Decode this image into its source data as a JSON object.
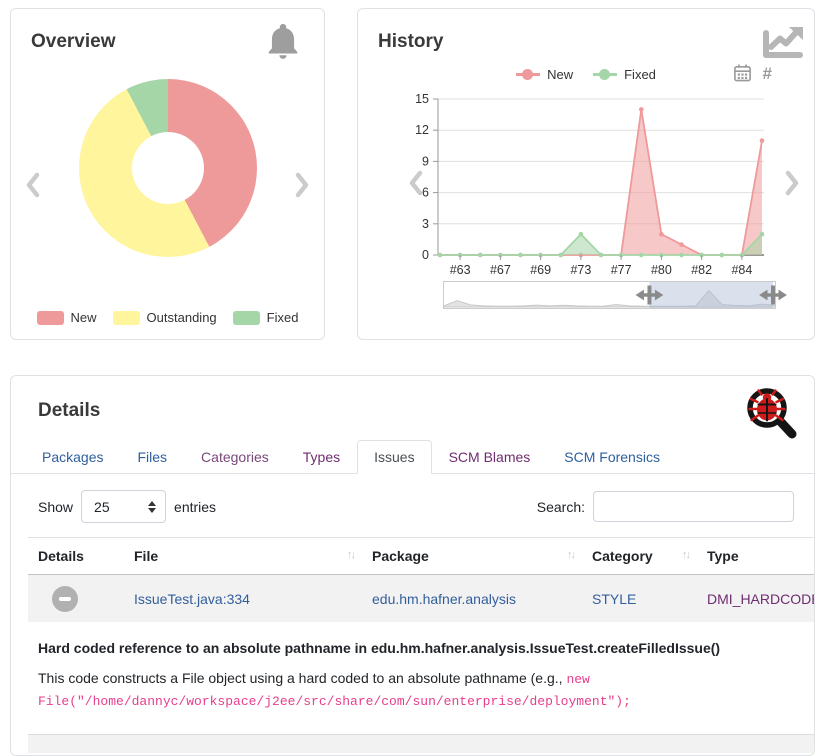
{
  "overview_card": {
    "title": "Overview"
  },
  "history_card": {
    "title": "History"
  },
  "details_card": {
    "title": "Details",
    "tabs": [
      {
        "label": "Packages"
      },
      {
        "label": "Files"
      },
      {
        "label": "Categories"
      },
      {
        "label": "Types"
      },
      {
        "label": "Issues",
        "active": true
      },
      {
        "label": "SCM Blames"
      },
      {
        "label": "SCM Forensics"
      }
    ],
    "controls": {
      "show_label": "Show",
      "entries_value": "25",
      "entries_label": "entries",
      "search_label": "Search:",
      "search_value": ""
    },
    "table": {
      "columns": [
        "Details",
        "File",
        "Package",
        "Category",
        "Type"
      ],
      "sort_glyph": "↑↓",
      "rows": [
        {
          "file": "IssueTest.java:334",
          "package": "edu.hm.hafner.analysis",
          "category": "STYLE",
          "type": "DMI_HARDCODED_ABSOLU"
        }
      ],
      "expanded": {
        "title": "Hard coded reference to an absolute pathname in edu.hm.hafner.analysis.IssueTest.createFilledIssue()",
        "text": "This code constructs a File object using a hard coded to an absolute pathname (e.g., ",
        "code": "new File(\"/home/dannyc/workspace/j2ee/src/share/com/sun/enterprise/deployment\");"
      }
    }
  },
  "chart_data": [
    {
      "type": "pie",
      "variant": "donut",
      "title": "Overview",
      "categories": [
        "New",
        "Outstanding",
        "Fixed"
      ],
      "values": [
        11,
        13,
        2
      ],
      "colors": [
        "#EF9A9A",
        "#FFF59D",
        "#A5D6A7"
      ],
      "legend_position": "bottom"
    },
    {
      "type": "area",
      "title": "History",
      "x_tick_labels": [
        "#63",
        "#67",
        "#69",
        "#73",
        "#77",
        "#80",
        "#82",
        "#84"
      ],
      "x_tick_indices": [
        1,
        3,
        5,
        7,
        9,
        11,
        13,
        15
      ],
      "n_points": 17,
      "ylim": [
        0,
        15
      ],
      "yticks": [
        0,
        3,
        6,
        9,
        12,
        15
      ],
      "grid": true,
      "legend_position": "top",
      "series": [
        {
          "name": "New",
          "color": "#EF9A9A",
          "values": [
            0,
            0,
            0,
            0,
            0,
            0,
            0,
            0,
            0,
            0,
            14,
            2,
            1,
            0,
            0,
            0,
            11
          ]
        },
        {
          "name": "Fixed",
          "color": "#A5D6A7",
          "values": [
            0,
            0,
            0,
            0,
            0,
            0,
            0,
            2,
            0,
            0,
            0,
            0,
            0,
            0,
            0,
            0,
            2
          ]
        }
      ],
      "zoom_slider": {
        "selection_start": 0.62,
        "selection_end": 1.0,
        "profile": [
          0.05,
          0.3,
          0.1,
          0.05,
          0.04,
          0.04,
          0.05,
          0.09,
          0.05,
          0.08,
          0.05,
          0.04,
          0.04,
          0.12,
          0.05,
          0.04,
          0.04,
          0.04,
          0.04,
          0.05,
          0.78,
          0.12,
          0.07,
          0.05,
          0.14,
          0.08
        ]
      }
    }
  ],
  "colors": {
    "new": "#EF9A9A",
    "outstanding": "#FFF59D",
    "fixed": "#A5D6A7",
    "link": "#335E9C",
    "link_visited": "#6F2D6F",
    "code": "#E83E8C",
    "slider_selection": "#A7B7D4"
  }
}
